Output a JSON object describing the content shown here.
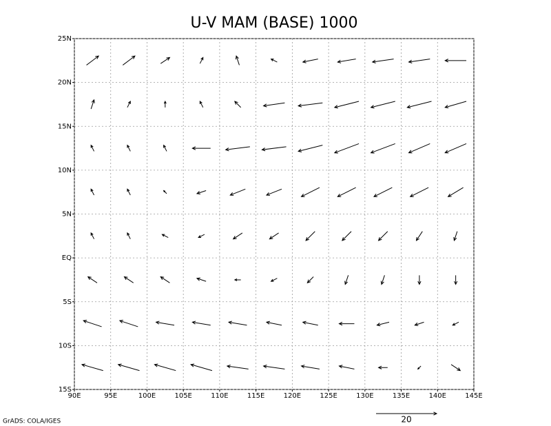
{
  "chart_data": {
    "type": "vector",
    "title": "U-V MAM (BASE) 1000",
    "credit": "GrADS: COLA/IGES",
    "reference_vector": 20,
    "xlim": [
      90,
      145
    ],
    "ylim": [
      -15,
      25
    ],
    "grid": true,
    "color": "#000000",
    "xticks": [
      {
        "value": 90,
        "label": "90E"
      },
      {
        "value": 95,
        "label": "95E"
      },
      {
        "value": 100,
        "label": "100E"
      },
      {
        "value": 105,
        "label": "105E"
      },
      {
        "value": 110,
        "label": "110E"
      },
      {
        "value": 115,
        "label": "115E"
      },
      {
        "value": 120,
        "label": "120E"
      },
      {
        "value": 125,
        "label": "125E"
      },
      {
        "value": 130,
        "label": "130E"
      },
      {
        "value": 135,
        "label": "135E"
      },
      {
        "value": 140,
        "label": "140E"
      },
      {
        "value": 145,
        "label": "145E"
      }
    ],
    "yticks": [
      {
        "value": 25,
        "label": "25N"
      },
      {
        "value": 20,
        "label": "20N"
      },
      {
        "value": 15,
        "label": "15N"
      },
      {
        "value": 10,
        "label": "10N"
      },
      {
        "value": 5,
        "label": "5N"
      },
      {
        "value": 0,
        "label": "EQ"
      },
      {
        "value": -5,
        "label": "5S"
      },
      {
        "value": -10,
        "label": "10S"
      },
      {
        "value": -15,
        "label": "15S"
      }
    ],
    "lons": [
      92.5,
      97.5,
      102.5,
      107.5,
      112.5,
      117.5,
      122.5,
      127.5,
      132.5,
      137.5,
      142.5
    ],
    "lats": [
      22.5,
      17.5,
      12.5,
      7.5,
      2.5,
      -2.5,
      -7.5,
      -12.5
    ],
    "u": [
      [
        4,
        4,
        3,
        1,
        -1,
        -2,
        -5,
        -6,
        -7,
        -7,
        -7
      ],
      [
        1,
        1,
        0,
        -1,
        -2,
        -7,
        -8,
        -8,
        -8,
        -8,
        -7
      ],
      [
        -1,
        -1,
        -1,
        -6,
        -8,
        -8,
        -8,
        -8,
        -8,
        -7,
        -7
      ],
      [
        -1,
        -1,
        -1,
        -3,
        -5,
        -5,
        -6,
        -6,
        -6,
        -6,
        -5
      ],
      [
        -1,
        -1,
        -2,
        -2,
        -3,
        -3,
        -3,
        -3,
        -3,
        -2,
        -1
      ],
      [
        -3,
        -3,
        -3,
        -3,
        -2,
        -2,
        -2,
        -1,
        -1,
        0,
        0
      ],
      [
        -6,
        -6,
        -6,
        -6,
        -6,
        -5,
        -5,
        -5,
        -4,
        -3,
        -2
      ],
      [
        -7,
        -7,
        -7,
        -7,
        -7,
        -7,
        -6,
        -5,
        -3,
        -1,
        3
      ]
    ],
    "v": [
      [
        3,
        3,
        2,
        2,
        3,
        1,
        -1,
        -1,
        -1,
        -1,
        0
      ],
      [
        3,
        2,
        2,
        2,
        2,
        -1,
        -1,
        -2,
        -2,
        -2,
        -2
      ],
      [
        2,
        2,
        2,
        0,
        -1,
        -1,
        -2,
        -3,
        -3,
        -3,
        -3
      ],
      [
        2,
        2,
        1,
        -1,
        -2,
        -2,
        -3,
        -3,
        -3,
        -3,
        -3
      ],
      [
        2,
        2,
        1,
        -1,
        -2,
        -2,
        -3,
        -3,
        -3,
        -3,
        -3
      ],
      [
        2,
        2,
        2,
        1,
        0,
        -1,
        -2,
        -3,
        -3,
        -3,
        -3
      ],
      [
        2,
        2,
        1,
        1,
        1,
        1,
        1,
        0,
        -1,
        -1,
        -1
      ],
      [
        2,
        2,
        2,
        2,
        1,
        1,
        1,
        1,
        0,
        -1,
        -2
      ]
    ]
  }
}
